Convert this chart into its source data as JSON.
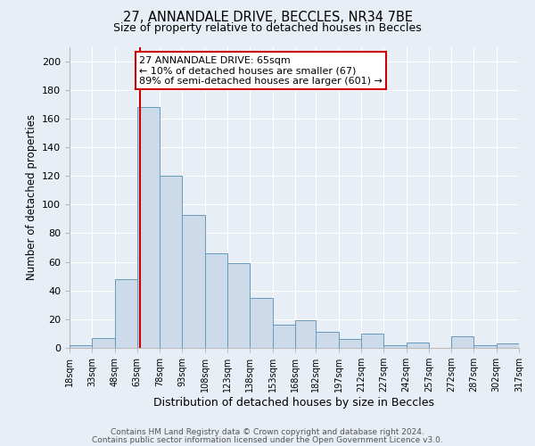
{
  "title": "27, ANNANDALE DRIVE, BECCLES, NR34 7BE",
  "subtitle": "Size of property relative to detached houses in Beccles",
  "xlabel": "Distribution of detached houses by size in Beccles",
  "ylabel": "Number of detached properties",
  "bar_color": "#ccdaea",
  "bar_edge_color": "#6699bb",
  "background_color": "#e8eef5",
  "plot_bg_color": "#e8eef5",
  "grid_color": "#ffffff",
  "vline_x": 65,
  "vline_color": "#cc0000",
  "bin_edges": [
    18,
    33,
    48,
    63,
    78,
    93,
    108,
    123,
    138,
    153,
    168,
    182,
    197,
    212,
    227,
    242,
    257,
    272,
    287,
    302,
    317
  ],
  "bar_heights": [
    2,
    7,
    48,
    168,
    120,
    93,
    66,
    59,
    35,
    16,
    19,
    11,
    6,
    10,
    2,
    4,
    0,
    8,
    2,
    3
  ],
  "ylim": [
    0,
    210
  ],
  "yticks": [
    0,
    20,
    40,
    60,
    80,
    100,
    120,
    140,
    160,
    180,
    200
  ],
  "xlabels": [
    "18sqm",
    "33sqm",
    "48sqm",
    "63sqm",
    "78sqm",
    "93sqm",
    "108sqm",
    "123sqm",
    "138sqm",
    "153sqm",
    "168sqm",
    "182sqm",
    "197sqm",
    "212sqm",
    "227sqm",
    "242sqm",
    "257sqm",
    "272sqm",
    "287sqm",
    "302sqm",
    "317sqm"
  ],
  "annotation_title": "27 ANNANDALE DRIVE: 65sqm",
  "annotation_line1": "← 10% of detached houses are smaller (67)",
  "annotation_line2": "89% of semi-detached houses are larger (601) →",
  "footnote1": "Contains HM Land Registry data © Crown copyright and database right 2024.",
  "footnote2": "Contains public sector information licensed under the Open Government Licence v3.0."
}
